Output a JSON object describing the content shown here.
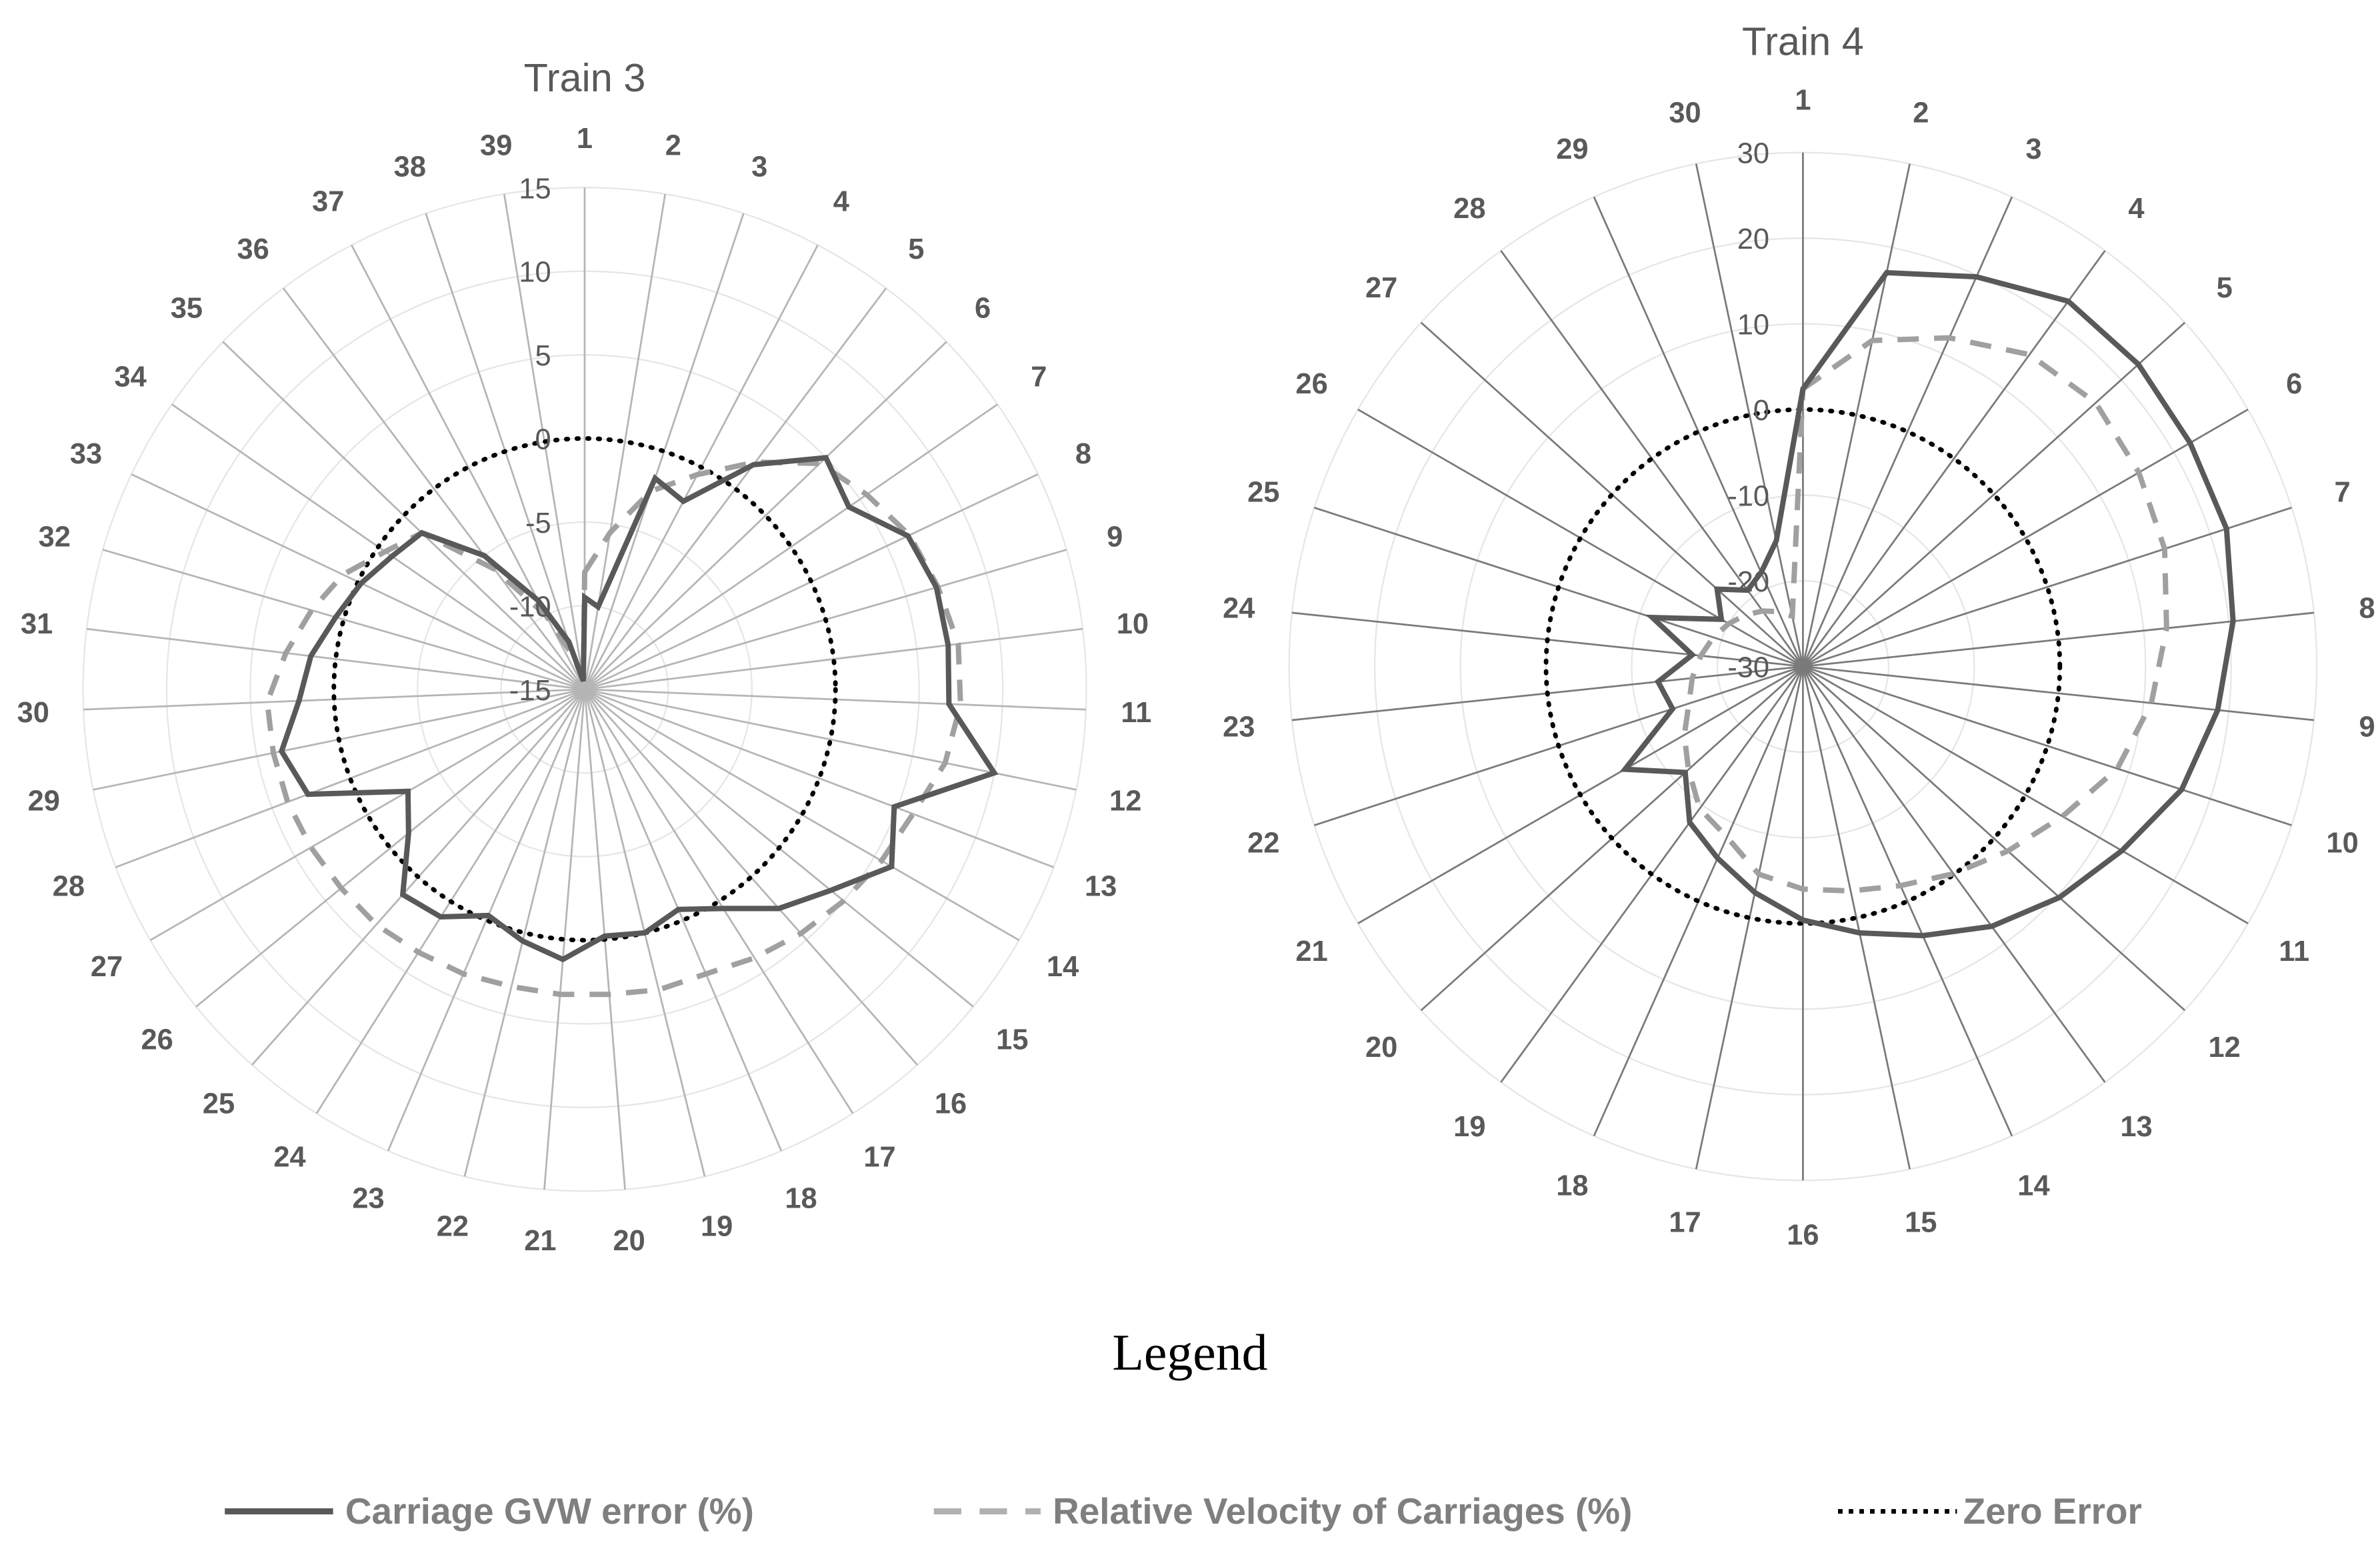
{
  "chart_data": [
    {
      "type": "radar",
      "title": "Train 3",
      "categories": [
        "1",
        "2",
        "3",
        "4",
        "5",
        "6",
        "7",
        "8",
        "9",
        "10",
        "11",
        "12",
        "13",
        "14",
        "15",
        "16",
        "17",
        "18",
        "19",
        "20",
        "21",
        "22",
        "23",
        "24",
        "25",
        "26",
        "27",
        "28",
        "29",
        "30",
        "31",
        "32",
        "33",
        "34",
        "35",
        "36",
        "37",
        "38",
        "39"
      ],
      "rlim": [
        -15,
        15
      ],
      "ticks": [
        "-15",
        "-10",
        "-5",
        "0",
        "5",
        "10",
        "15"
      ],
      "tick_values": [
        -15,
        -10,
        -5,
        0,
        5,
        10,
        15
      ],
      "series": [
        {
          "name": "Carriage GVW error (%)",
          "values": [
            -9.5,
            -10,
            -1.7,
            -2.3,
            1.8,
            5.0,
            4.2,
            6.4,
            6.9,
            6.9,
            6.8,
            10.0,
            4.8,
            6.2,
            4.0,
            2.5,
            0.5,
            -0.7,
            0,
            -0.2,
            1.2,
            0.5,
            -0.3,
            1.1,
            1.4,
            -1.4,
            -2.8,
            2.7,
            3.5,
            2.1,
            1.5,
            0.5,
            -0.2,
            -1.0,
            -1.5,
            -5,
            -9,
            -12,
            -14.5
          ]
        },
        {
          "name": "Relative Velocity of Carriages (%)",
          "values": [
            -8,
            -5.5,
            -2.5,
            -0.5,
            2,
            4.5,
            5.5,
            6.5,
            7,
            7.5,
            7.5,
            7,
            6,
            5.5,
            5,
            4.5,
            4,
            3.5,
            3.5,
            3.3,
            3.3,
            3.3,
            3.5,
            3.6,
            3.8,
            3.8,
            3.9,
            4,
            4,
            4,
            3,
            2,
            1,
            -0.5,
            -1.5,
            -6,
            -10,
            -13,
            -14.5
          ]
        },
        {
          "name": "Zero Error",
          "values": "constant 0"
        }
      ]
    },
    {
      "type": "radar",
      "title": "Train 4",
      "categories": [
        "1",
        "2",
        "3",
        "4",
        "5",
        "6",
        "7",
        "8",
        "9",
        "10",
        "11",
        "12",
        "13",
        "14",
        "15",
        "16",
        "17",
        "18",
        "19",
        "20",
        "21",
        "22",
        "23",
        "24",
        "25",
        "26",
        "27",
        "28",
        "29",
        "30"
      ],
      "rlim": [
        -30,
        30
      ],
      "ticks": [
        "-30",
        "-20",
        "-10",
        "0",
        "10",
        "20",
        "30"
      ],
      "tick_values": [
        -30,
        -20,
        -10,
        0,
        10,
        20,
        30
      ],
      "series": [
        {
          "name": "Carriage GVW error (%)",
          "values": [
            2.4,
            17,
            19.8,
            22.7,
            22.7,
            22.2,
            22,
            20.5,
            18.7,
            16.5,
            13,
            10.3,
            7.5,
            4.4,
            1.8,
            -0.4,
            -3,
            -5.5,
            -7.5,
            -11.5,
            -6,
            -14,
            -13,
            -17,
            -11.5,
            -19,
            -16.5,
            -19,
            -18,
            -15
          ]
        },
        {
          "name": "Relative Velocity of Carriages (%)",
          "values": [
            2.4,
            8.9,
            12,
            15,
            16,
            15.3,
            14.4,
            12.7,
            10.9,
            8.6,
            5,
            2.2,
            -0.1,
            -2,
            -3.2,
            -4,
            -5.2,
            -8.2,
            -9.5,
            -12,
            -14,
            -16,
            -17,
            -18,
            -19,
            -20,
            -21,
            -22,
            -23,
            -24
          ]
        },
        {
          "name": "Zero Error",
          "values": "constant 0"
        }
      ]
    }
  ],
  "legend": {
    "title": "Legend",
    "items": [
      "Carriage GVW error (%)",
      "Relative Velocity of Carriages (%)",
      "Zero Error"
    ],
    "placement": "bottom"
  },
  "colors": {
    "gvw": "#595959",
    "velocity": "#a0a0a0",
    "zero": "#000000",
    "grid": "#e6e6e6"
  }
}
